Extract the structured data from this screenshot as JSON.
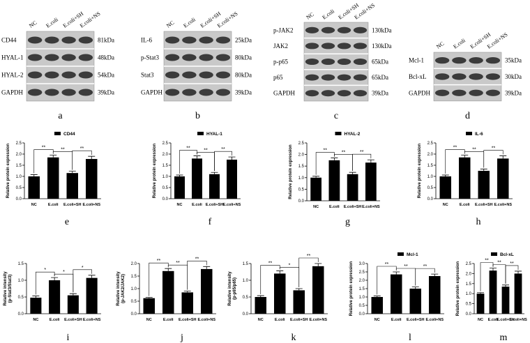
{
  "blots": [
    {
      "panel": "a",
      "lanes": [
        "NC",
        "E.coli",
        "E.coli+SH",
        "E.coli+NS"
      ],
      "rows": [
        {
          "protein": "CD44",
          "size": "81kDa"
        },
        {
          "protein": "HYAL-1",
          "size": "48kDa"
        },
        {
          "protein": "HYAL-2",
          "size": "54kDa"
        },
        {
          "protein": "GAPDH",
          "size": "39kDa"
        }
      ]
    },
    {
      "panel": "b",
      "lanes": [
        "NC",
        "E.coli",
        "E.coli+SH",
        "E.coli+NS"
      ],
      "rows": [
        {
          "protein": "IL-6",
          "size": "25kDa"
        },
        {
          "protein": "p-Stat3",
          "size": "80kDa"
        },
        {
          "protein": "Stat3",
          "size": "80kDa"
        },
        {
          "protein": "GAPDH",
          "size": "39kDa"
        }
      ]
    },
    {
      "panel": "c",
      "lanes": [
        "NC",
        "E.coli",
        "E.coli+SH",
        "E.coli+NS"
      ],
      "rows": [
        {
          "protein": "p-JAK2",
          "size": "130kDa"
        },
        {
          "protein": "JAK2",
          "size": "130kDa"
        },
        {
          "protein": "p-p65",
          "size": "65kDa"
        },
        {
          "protein": "p65",
          "size": "65kDa"
        },
        {
          "protein": "GAPDH",
          "size": "39kDa"
        }
      ]
    },
    {
      "panel": "d",
      "lanes": [
        "NC",
        "E.coli",
        "E.coli+SH",
        "E.coli+NS"
      ],
      "rows": [
        {
          "protein": "Mcl-1",
          "size": "35kDa"
        },
        {
          "protein": "Bcl-xL",
          "size": "30kDa"
        },
        {
          "protein": "GAPDH",
          "size": "39kDa"
        }
      ]
    }
  ],
  "chart_data": [
    {
      "type": "bar",
      "panel": "e",
      "ylabel": "Relative protein expression",
      "categories": [
        "NC",
        "E.coli",
        "E.coli+SH",
        "E.coli+NS"
      ],
      "series": [
        {
          "name": "CD44",
          "color": "#000000",
          "values": [
            1.0,
            1.85,
            1.15,
            1.78
          ],
          "errors": [
            0.08,
            0.1,
            0.08,
            0.12
          ]
        }
      ],
      "ylim": [
        0,
        2.5
      ],
      "yticks": [
        {
          "value": 0,
          "label": "0.0"
        },
        0.5,
        {
          "value": 1,
          "label": "1.0"
        },
        1.5,
        {
          "value": 2,
          "label": "2.0"
        },
        2.5
      ],
      "significance": [
        "**",
        "**",
        "**"
      ]
    },
    {
      "type": "bar",
      "panel": "f",
      "ylabel": "Relative protein expression",
      "categories": [
        "NC",
        "E.coli",
        "E.coli+SH",
        "E.coli+NS"
      ],
      "series": [
        {
          "name": "HYAL-1",
          "color": "#000000",
          "values": [
            1.0,
            1.8,
            1.1,
            1.75
          ],
          "errors": [
            0.06,
            0.12,
            0.08,
            0.12
          ]
        }
      ],
      "ylim": [
        0,
        2.5
      ],
      "yticks": [
        {
          "value": 0,
          "label": "0.0"
        },
        0.5,
        {
          "value": 1,
          "label": "1.0"
        },
        1.5,
        {
          "value": 2,
          "label": "2.0"
        },
        2.5
      ],
      "significance": [
        "**",
        "**",
        "**"
      ]
    },
    {
      "type": "bar",
      "panel": "g",
      "ylabel": "Relative protein expression",
      "categories": [
        "NC",
        "E.coli",
        "E.coli+SH",
        "E.coli+NS"
      ],
      "series": [
        {
          "name": "HYAL-2",
          "color": "#000000",
          "values": [
            1.0,
            1.75,
            1.15,
            1.65
          ],
          "errors": [
            0.06,
            0.1,
            0.08,
            0.12
          ]
        }
      ],
      "ylim": [
        0,
        2.5
      ],
      "yticks": [
        {
          "value": 0,
          "label": "0.0"
        },
        0.5,
        {
          "value": 1,
          "label": "1.0"
        },
        1.5,
        {
          "value": 2,
          "label": "2.0"
        },
        2.5
      ],
      "significance": [
        "**",
        "**",
        "**"
      ]
    },
    {
      "type": "bar",
      "panel": "h",
      "ylabel": "Relative protein expression",
      "categories": [
        "NC",
        "E.coli",
        "E.coli+SH",
        "E.coli+NS"
      ],
      "series": [
        {
          "name": "IL-6",
          "color": "#000000",
          "values": [
            1.0,
            1.85,
            1.25,
            1.8
          ],
          "errors": [
            0.06,
            0.1,
            0.08,
            0.12
          ]
        }
      ],
      "ylim": [
        0,
        2.5
      ],
      "yticks": [
        {
          "value": 0,
          "label": "0.0"
        },
        0.5,
        {
          "value": 1,
          "label": "1.0"
        },
        1.5,
        {
          "value": 2,
          "label": "2.0"
        },
        2.5
      ],
      "significance": [
        "**",
        "**",
        "**"
      ]
    },
    {
      "type": "bar",
      "panel": "i",
      "ylabel": [
        "Relative intensity",
        "(p-Stat3/Stat3)"
      ],
      "categories": [
        "NC",
        "E.coli",
        "E.coli+SH",
        "E.coli+NS"
      ],
      "series": [
        {
          "color": "#000000",
          "values": [
            0.48,
            1.0,
            0.55,
            1.07
          ],
          "errors": [
            0.05,
            0.08,
            0.05,
            0.08
          ]
        }
      ],
      "ylim": [
        0,
        1.5
      ],
      "yticks": [
        {
          "value": 0,
          "label": "0.0"
        },
        0.5,
        {
          "value": 1,
          "label": "1.0"
        },
        1.5
      ],
      "significance": [
        "*",
        "*",
        "*"
      ]
    },
    {
      "type": "bar",
      "panel": "j",
      "ylabel": [
        "Relative intensity",
        "(p-JAK2/JAK2)"
      ],
      "categories": [
        "NC",
        "E.coli",
        "E.coli+SH",
        "E.coli+NS"
      ],
      "series": [
        {
          "color": "#000000",
          "values": [
            0.62,
            1.7,
            0.85,
            1.78
          ],
          "errors": [
            0.03,
            0.1,
            0.05,
            0.1
          ]
        }
      ],
      "ylim": [
        0,
        2
      ],
      "yticks": [
        {
          "value": 0,
          "label": "0.0"
        },
        0.5,
        {
          "value": 1,
          "label": "1.0"
        },
        1.5,
        {
          "value": 2,
          "label": "2.0"
        }
      ],
      "significance": [
        "**",
        "**",
        "**"
      ]
    },
    {
      "type": "bar",
      "panel": "k",
      "ylabel": [
        "Relative intensity",
        "(p-p65/p65)"
      ],
      "categories": [
        "NC",
        "E.coli",
        "E.coli+SH",
        "E.coli+NS"
      ],
      "series": [
        {
          "color": "#000000",
          "values": [
            0.5,
            1.2,
            0.7,
            1.42
          ],
          "errors": [
            0.04,
            0.08,
            0.05,
            0.08
          ]
        }
      ],
      "ylim": [
        0,
        1.5
      ],
      "yticks": [
        {
          "value": 0,
          "label": "0.0"
        },
        0.5,
        {
          "value": 1,
          "label": "1.0"
        },
        1.5
      ],
      "significance": [
        "**",
        "*",
        "**"
      ]
    },
    {
      "type": "bar",
      "panel": "l",
      "ylabel": "Relative protein expression",
      "categories": [
        "NC",
        "E.coli",
        "E.coli+SH",
        "E.coli+NS"
      ],
      "series": [
        {
          "name": "Mcl-1",
          "color": "#000000",
          "values": [
            1.0,
            2.35,
            1.5,
            2.25
          ],
          "errors": [
            0.06,
            0.15,
            0.1,
            0.12
          ]
        }
      ],
      "ylim": [
        0,
        3
      ],
      "yticks": [
        {
          "value": 0,
          "label": "0.0"
        },
        0.5,
        {
          "value": 1,
          "label": "1.0"
        },
        1.5,
        {
          "value": 2,
          "label": "2.0"
        },
        2.5,
        {
          "value": 3,
          "label": "3.0"
        }
      ],
      "significance": [
        "**",
        "**",
        "**"
      ]
    },
    {
      "type": "bar",
      "panel": "m",
      "ylabel": "Relative protein expression",
      "categories": [
        "NC",
        "E.coli",
        "E.coli+SH",
        "E.coli+NS"
      ],
      "series": [
        {
          "name": "Bcl-xL",
          "color": "#000000",
          "values": [
            1.0,
            2.15,
            1.35,
            2.0
          ],
          "errors": [
            0.05,
            0.12,
            0.08,
            0.12
          ]
        }
      ],
      "ylim": [
        0,
        2.5
      ],
      "yticks": [
        {
          "value": 0,
          "label": "0.0"
        },
        0.5,
        {
          "value": 1,
          "label": "1.0"
        },
        1.5,
        {
          "value": 2,
          "label": "2.0"
        },
        2.5
      ],
      "significance": [
        "**",
        "**",
        "**"
      ]
    }
  ]
}
